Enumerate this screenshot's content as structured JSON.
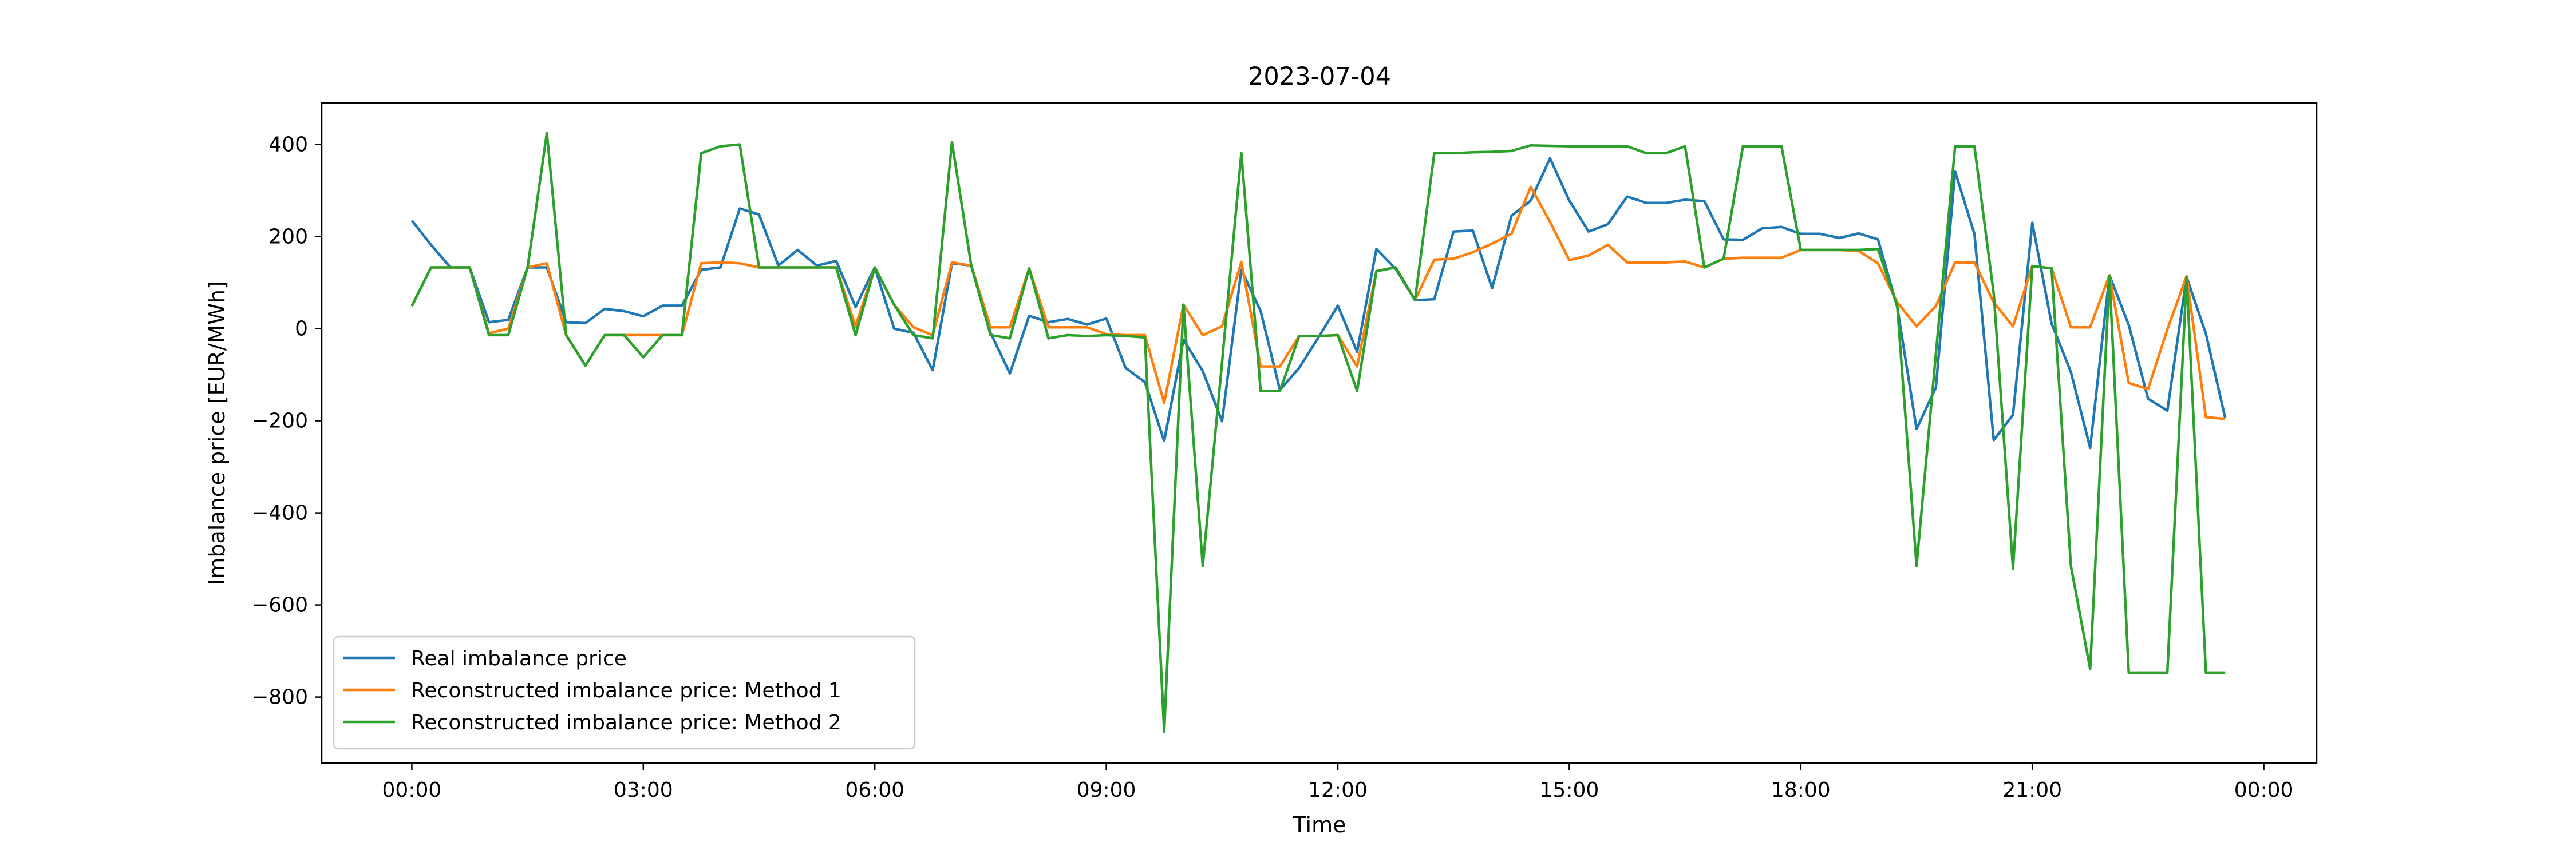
{
  "chart_data": {
    "type": "line",
    "title": "2023-07-04",
    "xlabel": "Time",
    "ylabel": "Imbalance price [EUR/MWh]",
    "ylim": [
      -940,
      490
    ],
    "yticks": [
      400,
      200,
      0,
      -200,
      -400,
      -600,
      -800
    ],
    "xticks": [
      "00:00",
      "03:00",
      "06:00",
      "09:00",
      "12:00",
      "15:00",
      "18:00",
      "21:00",
      "00:00"
    ],
    "grid": false,
    "legend_position": "lower-left",
    "x": [
      "00:00",
      "00:15",
      "00:30",
      "00:45",
      "01:00",
      "01:15",
      "01:30",
      "01:45",
      "02:00",
      "02:15",
      "02:30",
      "02:45",
      "03:00",
      "03:15",
      "03:30",
      "03:45",
      "04:00",
      "04:15",
      "04:30",
      "04:45",
      "05:00",
      "05:15",
      "05:30",
      "05:45",
      "06:00",
      "06:15",
      "06:30",
      "06:45",
      "07:00",
      "07:15",
      "07:30",
      "07:45",
      "08:00",
      "08:15",
      "08:30",
      "08:45",
      "09:00",
      "09:15",
      "09:30",
      "09:45",
      "10:00",
      "10:15",
      "10:30",
      "10:45",
      "11:00",
      "11:15",
      "11:30",
      "11:45",
      "12:00",
      "12:15",
      "12:30",
      "12:45",
      "13:00",
      "13:15",
      "13:30",
      "13:45",
      "14:00",
      "14:15",
      "14:30",
      "14:45",
      "15:00",
      "15:15",
      "15:30",
      "15:45",
      "16:00",
      "16:15",
      "16:30",
      "16:45",
      "17:00",
      "17:15",
      "17:30",
      "17:45",
      "18:00",
      "18:15",
      "18:30",
      "18:45",
      "19:00",
      "19:15",
      "19:30",
      "19:45",
      "20:00",
      "20:15",
      "20:30",
      "20:45",
      "21:00",
      "21:15",
      "21:30",
      "21:45",
      "22:00",
      "22:15",
      "22:30",
      "22:45",
      "23:00",
      "23:15",
      "23:30"
    ],
    "series": [
      {
        "name": "Real imbalance price",
        "color": "#1f77b4",
        "values": [
          235,
          182,
          133,
          133,
          14,
          19,
          133,
          133,
          14,
          12,
          43,
          38,
          27,
          50,
          50,
          128,
          133,
          261,
          248,
          137,
          171,
          137,
          147,
          47,
          133,
          0,
          -9,
          -90,
          142,
          137,
          -9,
          -97,
          28,
          14,
          21,
          9,
          22,
          -85,
          -116,
          -244,
          -24,
          -92,
          -201,
          128,
          38,
          -133,
          -85,
          -19,
          50,
          -50,
          173,
          130,
          62,
          64,
          211,
          213,
          88,
          245,
          278,
          370,
          278,
          211,
          227,
          287,
          273,
          273,
          280,
          277,
          194,
          193,
          218,
          221,
          206,
          206,
          197,
          207,
          194,
          47,
          -218,
          -128,
          341,
          206,
          -242,
          -187,
          230,
          11,
          -94,
          -259,
          116,
          8,
          -152,
          -178,
          112,
          -11,
          -194
        ]
      },
      {
        "name": "Reconstructed imbalance price: Method 1",
        "color": "#ff7f0e",
        "values": [
          49,
          133,
          133,
          133,
          -10,
          0,
          133,
          142,
          -14,
          -80,
          -14,
          -14,
          -14,
          -14,
          -14,
          142,
          144,
          142,
          133,
          133,
          133,
          133,
          133,
          5,
          133,
          52,
          3,
          -14,
          144,
          137,
          3,
          3,
          131,
          3,
          3,
          3,
          -12,
          -14,
          -14,
          -161,
          52,
          -14,
          5,
          145,
          -82,
          -82,
          -16,
          -16,
          -14,
          -82,
          125,
          133,
          62,
          150,
          152,
          166,
          185,
          206,
          308,
          232,
          149,
          159,
          182,
          144,
          144,
          144,
          146,
          133,
          152,
          154,
          154,
          154,
          171,
          171,
          171,
          169,
          142,
          57,
          5,
          49,
          144,
          144,
          57,
          5,
          136,
          131,
          3,
          3,
          116,
          -118,
          -131,
          -2,
          114,
          -192,
          -196
        ]
      },
      {
        "name": "Reconstructed imbalance price: Method 2",
        "color": "#2ca02c",
        "values": [
          49,
          133,
          133,
          133,
          -14,
          -14,
          133,
          425,
          -14,
          -80,
          -14,
          -14,
          -62,
          -14,
          -14,
          381,
          396,
          400,
          133,
          133,
          133,
          133,
          133,
          -14,
          133,
          52,
          -14,
          -21,
          405,
          137,
          -14,
          -21,
          131,
          -21,
          -14,
          -16,
          -14,
          -16,
          -19,
          -875,
          52,
          -515,
          -73,
          381,
          -135,
          -135,
          -16,
          -16,
          -14,
          -135,
          125,
          133,
          62,
          381,
          381,
          383,
          384,
          386,
          398,
          397,
          396,
          396,
          396,
          396,
          381,
          381,
          396,
          133,
          152,
          396,
          396,
          396,
          171,
          171,
          171,
          171,
          173,
          49,
          -515,
          -56,
          396,
          396,
          76,
          -521,
          136,
          131,
          -515,
          -739,
          114,
          -747,
          -747,
          -747,
          112,
          -747,
          -747
        ]
      }
    ]
  }
}
